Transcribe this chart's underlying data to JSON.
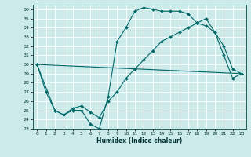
{
  "xlabel": "Humidex (Indice chaleur)",
  "background_color": "#cdeaea",
  "grid_color": "#ffffff",
  "line_color": "#006666",
  "xlim": [
    -0.5,
    23.5
  ],
  "ylim": [
    23,
    36.5
  ],
  "yticks": [
    23,
    24,
    25,
    26,
    27,
    28,
    29,
    30,
    31,
    32,
    33,
    34,
    35,
    36
  ],
  "xticks": [
    0,
    1,
    2,
    3,
    4,
    5,
    6,
    7,
    8,
    9,
    10,
    11,
    12,
    13,
    14,
    15,
    16,
    17,
    18,
    19,
    20,
    21,
    22,
    23
  ],
  "line1_x": [
    0,
    1,
    2,
    3,
    4,
    5,
    6,
    7,
    8,
    9,
    10,
    11,
    12,
    13,
    14,
    15,
    16,
    17,
    18,
    19,
    20,
    21,
    22,
    23
  ],
  "line1_y": [
    30,
    27,
    25,
    24.5,
    25,
    25,
    23.5,
    23,
    26.5,
    32.5,
    34,
    35.8,
    36.2,
    36,
    35.8,
    35.8,
    35.8,
    35.5,
    34.5,
    34.2,
    33.5,
    31,
    28.5,
    29
  ],
  "line2_x": [
    0,
    2,
    3,
    4,
    5,
    6,
    7,
    8,
    9,
    10,
    11,
    12,
    13,
    14,
    15,
    16,
    17,
    18,
    19,
    20,
    21,
    22,
    23
  ],
  "line2_y": [
    30,
    25,
    24.5,
    25.2,
    25.5,
    24.8,
    24.2,
    26,
    27,
    28.5,
    29.5,
    30.5,
    31.5,
    32.5,
    33,
    33.5,
    34,
    34.5,
    35,
    33.5,
    32,
    29.5,
    29
  ],
  "line3_x": [
    0,
    23
  ],
  "line3_y": [
    30,
    29
  ]
}
